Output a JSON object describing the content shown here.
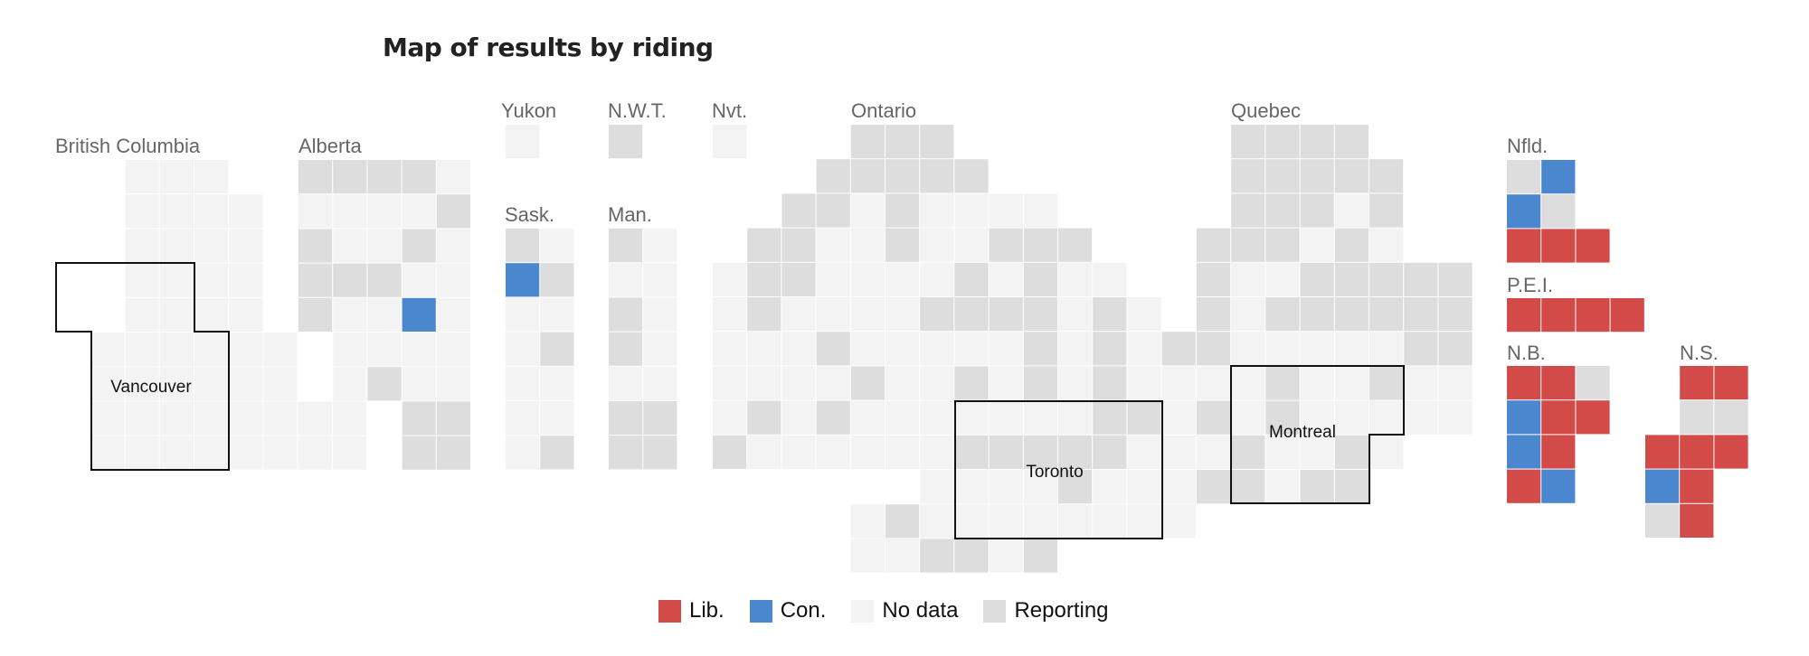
{
  "title": "Map of results by riding",
  "colors": {
    "lib": "#d24b48",
    "con": "#4a87cf",
    "nodata": "#f3f3f3",
    "reporting": "#dddddd"
  },
  "provinces": {
    "british_columbia": "British Columbia",
    "alberta": "Alberta",
    "yukon": "Yukon",
    "nwt": "N.W.T.",
    "nunavut": "Nvt.",
    "ontario": "Ontario",
    "quebec": "Quebec",
    "saskatchewan": "Sask.",
    "manitoba": "Man.",
    "newfoundland": "Nfld.",
    "pei": "P.E.I.",
    "new_brunswick": "N.B.",
    "nova_scotia": "N.S."
  },
  "cities": {
    "vancouver": "Vancouver",
    "toronto": "Toronto",
    "montreal": "Montreal"
  },
  "legend": [
    {
      "key": "lib",
      "label": "Lib."
    },
    {
      "key": "con",
      "label": "Con."
    },
    {
      "key": "nodata",
      "label": "No data"
    },
    {
      "key": "reporting",
      "label": "Reporting"
    }
  ],
  "ridings": [
    {
      "region": "british_columbia",
      "rows": [
        "...nnn",
        "...nnnn",
        "...nnnn",
        "...nnnn",
        "...nnnn",
        "..nnnnnn",
        "..nnnnnn",
        "..nnnnnnnn",
        "..nnnnnnnn"
      ]
    },
    {
      "region": "alberta",
      "rows": [
        "rrrrn",
        "nnnnr",
        "rnnrn",
        "rrrnn",
        "rnncn",
        ".nnnn",
        ".nrnn",
        "...rr",
        "...rr"
      ]
    },
    {
      "region": "yukon",
      "rows": [
        "n"
      ]
    },
    {
      "region": "nwt",
      "rows": [
        "r"
      ]
    },
    {
      "region": "nunavut",
      "rows": [
        "n"
      ]
    },
    {
      "region": "saskatchewan",
      "rows": [
        "rn",
        "cr",
        "nn",
        "nr",
        "nn",
        "nn",
        "nr"
      ]
    },
    {
      "region": "manitoba",
      "rows": [
        "rn",
        "nn",
        "rn",
        "rn",
        "nn",
        "rr",
        "rr"
      ]
    },
    {
      "region": "ontario",
      "rows": [
        "....rrr",
        "...rrrrr",
        "..rrnrnnnn",
        ".rrnnrnnrrr",
        "nrrnnnnrnrnn",
        "nrnnnnrrrrnrn",
        "nnnrnnnnnrnrnr",
        "nnnnrnnrnrnrnn",
        "nrnrnnnnnnnrrn",
        "rnnnnnnrrrrrnn",
        "......nnnnrnnn",
        "....nrnnnnnnnn",
        "....nnrrnr"
      ]
    },
    {
      "region": "quebec",
      "rows": [
        ".rrrr",
        ".rrrrr",
        ".rrrnr",
        "rrrnrn",
        "rnnrrrrr",
        "rnrrrrrr",
        "rnnnnnrr",
        "nnrnnrnn",
        "rnrnnnnn",
        "nrnnrn",
        "rrnrr"
      ]
    },
    {
      "region": "newfoundland",
      "rows": [
        "rc",
        "cr",
        "LLL"
      ]
    },
    {
      "region": "pei",
      "rows": [
        "LLLL"
      ]
    },
    {
      "region": "new_brunswick",
      "rows": [
        "LLr",
        "cLL",
        "cL",
        "Lc"
      ]
    },
    {
      "region": "nova_scotia",
      "rows": [
        ".LL",
        ".rr",
        "LLL",
        "cL",
        "rL"
      ]
    }
  ]
}
